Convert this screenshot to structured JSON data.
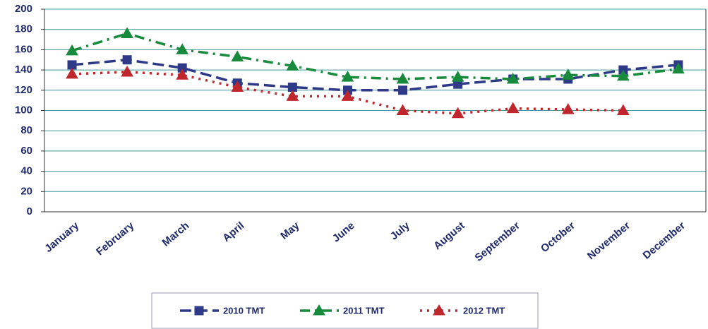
{
  "chart_data": {
    "type": "line",
    "categories": [
      "January",
      "February",
      "March",
      "April",
      "May",
      "June",
      "July",
      "August",
      "September",
      "October",
      "November",
      "December"
    ],
    "series": [
      {
        "name": "2010 TMT",
        "color": "#2e3a87",
        "line_style": "dash",
        "marker": "square",
        "values": [
          145,
          150,
          142,
          127,
          123,
          120,
          120,
          126,
          131,
          131,
          140,
          145
        ]
      },
      {
        "name": "2011 TMT",
        "color": "#178a3c",
        "line_style": "dash-dot",
        "marker": "triangle",
        "values": [
          159,
          176,
          160,
          153,
          144,
          133,
          131,
          133,
          131,
          135,
          134,
          141
        ]
      },
      {
        "name": "2012 TMT",
        "color": "#c0272d",
        "line_style": "dot",
        "marker": "triangle",
        "values": [
          136,
          138,
          135,
          123,
          114,
          114,
          100,
          97,
          102,
          101,
          100,
          null
        ]
      }
    ],
    "ylim": [
      0,
      200
    ],
    "yticks": [
      0,
      20,
      40,
      60,
      80,
      100,
      120,
      140,
      160,
      180,
      200
    ],
    "grid": true
  }
}
